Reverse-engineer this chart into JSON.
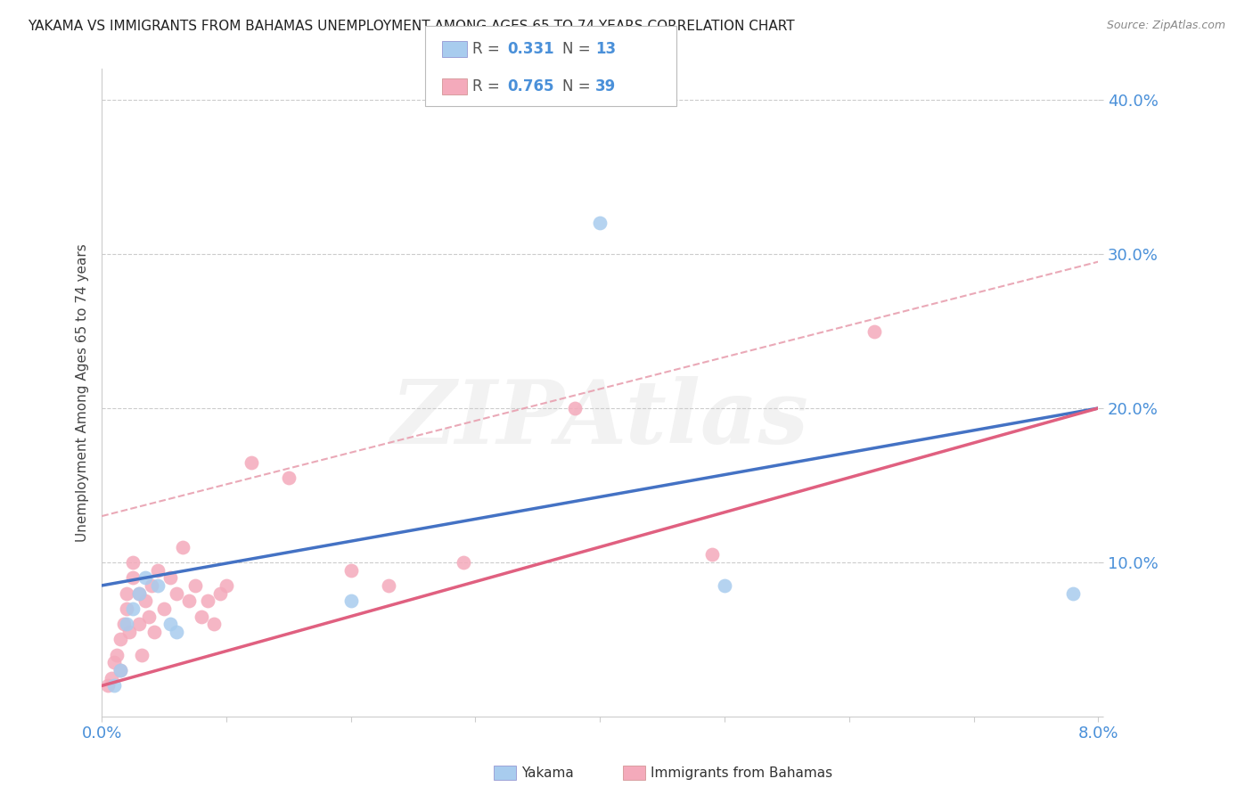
{
  "title": "YAKAMA VS IMMIGRANTS FROM BAHAMAS UNEMPLOYMENT AMONG AGES 65 TO 74 YEARS CORRELATION CHART",
  "source": "Source: ZipAtlas.com",
  "tick_color": "#4a90d9",
  "ylabel": "Unemployment Among Ages 65 to 74 years",
  "xlim": [
    0.0,
    0.08
  ],
  "ylim": [
    0.0,
    0.42
  ],
  "yticks": [
    0.0,
    0.1,
    0.2,
    0.3,
    0.4
  ],
  "ytick_labels": [
    "",
    "10.0%",
    "20.0%",
    "30.0%",
    "40.0%"
  ],
  "yakama_R": 0.331,
  "yakama_N": 13,
  "bahamas_R": 0.765,
  "bahamas_N": 39,
  "yakama_color": "#A8CCEE",
  "bahamas_color": "#F4AABB",
  "line_yakama_color": "#4472C4",
  "line_bahamas_color": "#E06080",
  "dash_color": "#E8A0B0",
  "watermark": "ZIPAtlas",
  "watermark_color": "#CCCCCC",
  "grid_color": "#CCCCCC",
  "yakama_x": [
    0.001,
    0.0015,
    0.002,
    0.0025,
    0.003,
    0.0035,
    0.0045,
    0.0055,
    0.006,
    0.02,
    0.04,
    0.05,
    0.078
  ],
  "yakama_y": [
    0.02,
    0.03,
    0.06,
    0.07,
    0.08,
    0.09,
    0.085,
    0.06,
    0.055,
    0.075,
    0.32,
    0.085,
    0.08
  ],
  "bahamas_x": [
    0.0005,
    0.0008,
    0.001,
    0.0012,
    0.0015,
    0.0015,
    0.0018,
    0.002,
    0.002,
    0.0022,
    0.0025,
    0.0025,
    0.003,
    0.003,
    0.0032,
    0.0035,
    0.0038,
    0.004,
    0.0042,
    0.0045,
    0.005,
    0.0055,
    0.006,
    0.0065,
    0.007,
    0.0075,
    0.008,
    0.0085,
    0.009,
    0.0095,
    0.01,
    0.012,
    0.015,
    0.02,
    0.023,
    0.029,
    0.038,
    0.049,
    0.062
  ],
  "bahamas_y": [
    0.02,
    0.025,
    0.035,
    0.04,
    0.05,
    0.03,
    0.06,
    0.07,
    0.08,
    0.055,
    0.09,
    0.1,
    0.06,
    0.08,
    0.04,
    0.075,
    0.065,
    0.085,
    0.055,
    0.095,
    0.07,
    0.09,
    0.08,
    0.11,
    0.075,
    0.085,
    0.065,
    0.075,
    0.06,
    0.08,
    0.085,
    0.165,
    0.155,
    0.095,
    0.085,
    0.1,
    0.2,
    0.105,
    0.25
  ],
  "yakama_line_x0": 0.0,
  "yakama_line_y0": 0.085,
  "yakama_line_x1": 0.08,
  "yakama_line_y1": 0.2,
  "bahamas_line_x0": 0.0,
  "bahamas_line_y0": 0.02,
  "bahamas_line_x1": 0.08,
  "bahamas_line_y1": 0.2,
  "dash_line_x0": 0.0,
  "dash_line_y0": 0.13,
  "dash_line_x1": 0.08,
  "dash_line_y1": 0.295
}
